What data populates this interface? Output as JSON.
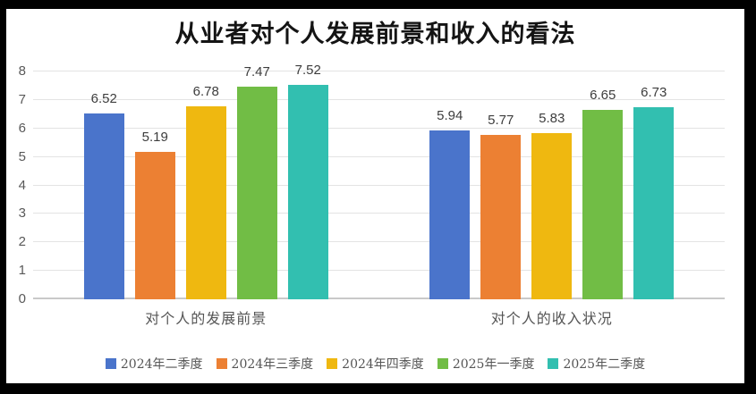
{
  "chart_data": {
    "type": "bar",
    "title": "从业者对个人发展前景和收入的看法",
    "categories": [
      "对个人的发展前景",
      "对个人的收入状况"
    ],
    "series": [
      {
        "name": "2024年二季度",
        "color": "#4a74cb",
        "values": [
          6.52,
          5.94
        ]
      },
      {
        "name": "2024年三季度",
        "color": "#ec8033",
        "values": [
          5.19,
          5.77
        ]
      },
      {
        "name": "2024年四季度",
        "color": "#efb810",
        "values": [
          6.78,
          5.83
        ]
      },
      {
        "name": "2025年一季度",
        "color": "#71bd45",
        "values": [
          7.47,
          6.65
        ]
      },
      {
        "name": "2025年二季度",
        "color": "#32bfb0",
        "values": [
          7.52,
          6.73
        ]
      }
    ],
    "ylim": [
      0,
      8
    ],
    "yticks": [
      0,
      1,
      2,
      3,
      4,
      5,
      6,
      7,
      8
    ],
    "grid": true,
    "legend_position": "bottom",
    "colors": {
      "gridline": "#e3e3e3",
      "baseline": "#c9c9c9",
      "axis_text": "#595959",
      "label_text": "#3d3d3d",
      "frame": "#000000",
      "background": "#ffffff"
    }
  }
}
